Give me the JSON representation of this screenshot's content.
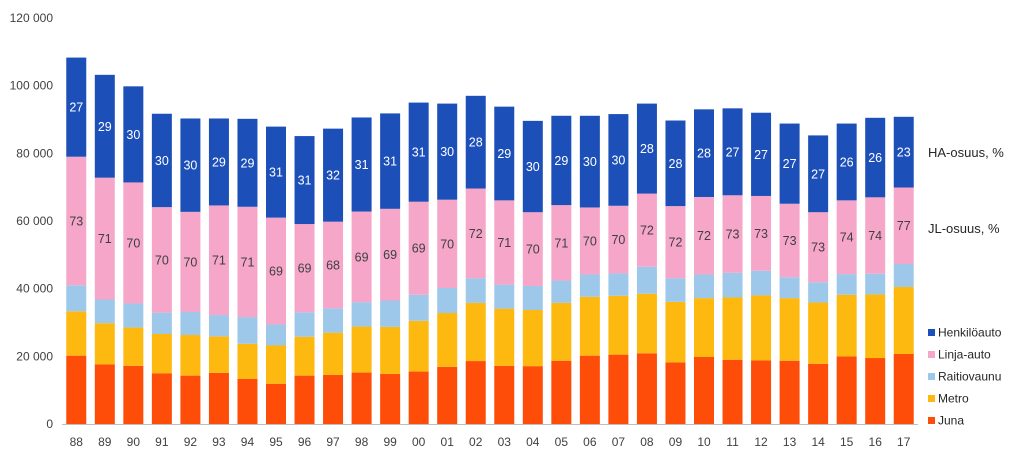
{
  "chart_data": {
    "type": "stacked-bar",
    "title": "",
    "xlabel": "",
    "ylabel": "",
    "ylim": [
      0,
      120000
    ],
    "y_ticks": [
      "0",
      "20 000",
      "40 000",
      "60 000",
      "80 000",
      "100 000",
      "120 000"
    ],
    "grid": false,
    "legend_position": "right",
    "categories": [
      "88",
      "89",
      "90",
      "91",
      "92",
      "93",
      "94",
      "95",
      "96",
      "97",
      "98",
      "99",
      "00",
      "01",
      "02",
      "03",
      "04",
      "05",
      "06",
      "07",
      "08",
      "09",
      "10",
      "11",
      "12",
      "13",
      "14",
      "15",
      "16",
      "17"
    ],
    "series": [
      {
        "name": "Juna",
        "color": "#fe4d09",
        "values": [
          20200,
          17600,
          17200,
          15000,
          14300,
          15100,
          13300,
          11900,
          14300,
          14500,
          15200,
          14800,
          15500,
          16900,
          18600,
          17200,
          17100,
          18700,
          20200,
          20500,
          20900,
          18200,
          19800,
          19000,
          18800,
          18700,
          17800,
          20000,
          19500,
          20700
        ]
      },
      {
        "name": "Metro",
        "color": "#fdb90f",
        "values": [
          13100,
          12200,
          11300,
          11600,
          12000,
          10800,
          10400,
          11300,
          11500,
          12500,
          13600,
          13900,
          15000,
          15900,
          17200,
          16900,
          16600,
          17100,
          17400,
          17400,
          17600,
          17900,
          17400,
          18400,
          19200,
          18500,
          18100,
          18200,
          18800,
          19800
        ]
      },
      {
        "name": "Raitiovaunu",
        "color": "#9dc8ea",
        "values": [
          7700,
          7000,
          7100,
          6300,
          6800,
          6300,
          7900,
          6200,
          7200,
          7200,
          7200,
          7800,
          7700,
          7400,
          7300,
          7100,
          7100,
          6600,
          6600,
          6600,
          8000,
          7000,
          7000,
          7300,
          7300,
          6200,
          6000,
          6100,
          6100,
          6800
        ]
      },
      {
        "name": "Linja-auto",
        "color": "#f5a6c9",
        "values": [
          38000,
          36000,
          35800,
          31200,
          29600,
          32400,
          32600,
          31600,
          26100,
          25600,
          26800,
          27100,
          27500,
          26100,
          26500,
          24900,
          21800,
          22300,
          19800,
          20000,
          21600,
          21300,
          22900,
          22900,
          22100,
          21700,
          20700,
          21800,
          22600,
          22600
        ]
      },
      {
        "name": "Henkilöauto",
        "color": "#1c4fb8",
        "values": [
          29300,
          30400,
          28400,
          27600,
          27600,
          25700,
          26000,
          26900,
          26000,
          27500,
          27800,
          28200,
          29300,
          28400,
          27400,
          27700,
          27000,
          26400,
          27100,
          27100,
          26600,
          25300,
          25900,
          25700,
          24600,
          23700,
          22700,
          22700,
          23500,
          20900
        ]
      }
    ],
    "segment_labels": {
      "Henkilöauto": [
        "27",
        "29",
        "30",
        "30",
        "30",
        "29",
        "29",
        "31",
        "31",
        "32",
        "31",
        "31",
        "31",
        "30",
        "28",
        "29",
        "30",
        "29",
        "30",
        "30",
        "28",
        "28",
        "28",
        "27",
        "27",
        "27",
        "27",
        "26",
        "26",
        "23"
      ],
      "Linja-auto": [
        "73",
        "71",
        "70",
        "70",
        "70",
        "71",
        "71",
        "69",
        "69",
        "68",
        "69",
        "69",
        "69",
        "70",
        "72",
        "71",
        "70",
        "71",
        "70",
        "70",
        "72",
        "72",
        "72",
        "73",
        "73",
        "73",
        "73",
        "74",
        "74",
        "77"
      ]
    },
    "annotations": {
      "ha_share": "HA-osuus, %",
      "jl_share": "JL-osuus, %"
    },
    "legend_order": [
      "Henkilöauto",
      "Linja-auto",
      "Raitiovaunu",
      "Metro",
      "Juna"
    ]
  }
}
